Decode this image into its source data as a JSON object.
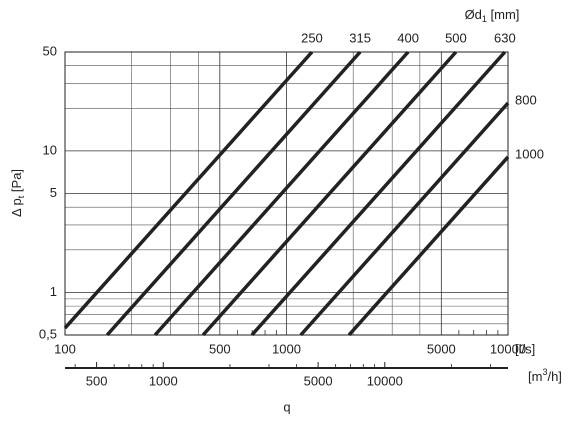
{
  "chart_data": {
    "type": "line",
    "log_x": true,
    "log_y": true,
    "grid": true,
    "color": "#222222",
    "xlim": [
      100,
      10000
    ],
    "ylim": [
      0.5,
      50
    ],
    "xticks": [
      100,
      500,
      1000,
      5000,
      10000
    ],
    "xgrid": [
      200,
      300,
      400,
      2000,
      3000,
      4000
    ],
    "xminor": [
      600,
      700,
      800,
      900,
      6000,
      7000,
      8000,
      9000
    ],
    "yticks": [
      {
        "value": 0.5,
        "label": "0,5"
      },
      1,
      5,
      10,
      50
    ],
    "ygrid": [
      0.6,
      0.7,
      0.8,
      0.9,
      2,
      3,
      4,
      20,
      30,
      40
    ],
    "x_unit": "[l/s]",
    "x2lim": [
      360,
      36000
    ],
    "x2ticks": [
      500,
      1000,
      5000,
      10000
    ],
    "x2minor": [
      400,
      600,
      700,
      800,
      900,
      2000,
      3000,
      4000,
      6000,
      7000,
      8000,
      9000,
      20000,
      30000
    ],
    "x2_unit": {
      "main": "[m",
      "sup": "3",
      "end": "/h]"
    },
    "x_label": "q",
    "y_label": {
      "main": "Δ p",
      "sub": "t",
      "end": " [Pa]"
    },
    "series_label": {
      "main": "Ød",
      "sub": "1",
      "end": " [mm]"
    },
    "series": [
      {
        "name": "250",
        "x": [
          100,
          1303
        ],
        "values": [
          0.56,
          50
        ]
      },
      {
        "name": "315",
        "x": [
          155,
          2150
        ],
        "values": [
          0.5,
          50
        ]
      },
      {
        "name": "400",
        "x": [
          255,
          3540
        ],
        "values": [
          0.5,
          50
        ]
      },
      {
        "name": "500",
        "x": [
          420,
          5820
        ],
        "values": [
          0.5,
          50
        ]
      },
      {
        "name": "630",
        "x": [
          698,
          9680
        ],
        "values": [
          0.5,
          50
        ]
      },
      {
        "name": "800",
        "x": [
          1160,
          10000
        ],
        "values": [
          0.5,
          21.8
        ]
      },
      {
        "name": "1000",
        "x": [
          1915,
          10000
        ],
        "values": [
          0.5,
          9.06
        ]
      }
    ]
  }
}
